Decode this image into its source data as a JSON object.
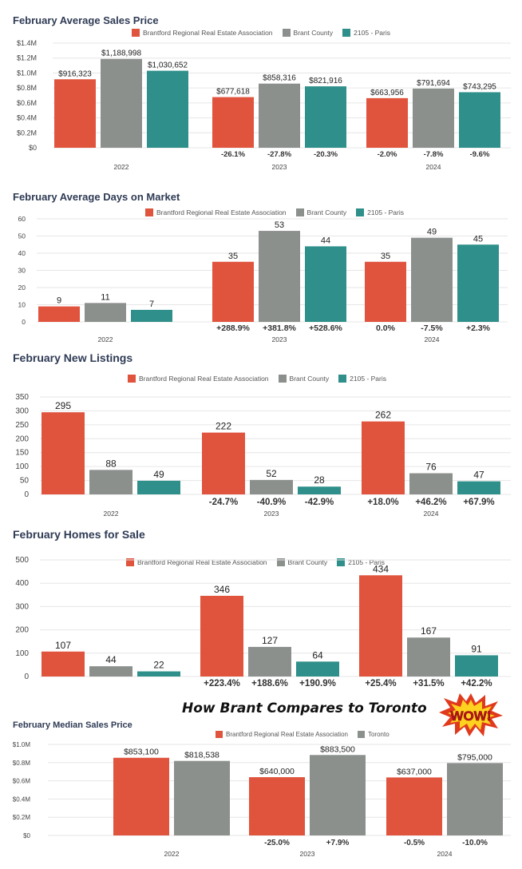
{
  "colors": {
    "brantford": "#e0533d",
    "brant": "#8c908d",
    "paris": "#2f8f8a",
    "toronto": "#8c908d",
    "title": "#2f3b55"
  },
  "headline": "How Brant Compares to Toronto",
  "badge_text": "WOW!",
  "chart_data": [
    {
      "type": "bar",
      "title": "February Average Sales Price",
      "categories": [
        "2022",
        "2023",
        "2024"
      ],
      "series": [
        {
          "name": "Brantford Regional Real Estate Association",
          "values": [
            916323,
            677618,
            663956
          ],
          "labels": [
            "$916,323",
            "$677,618",
            "$663,956"
          ]
        },
        {
          "name": "Brant County",
          "values": [
            1188998,
            858316,
            791694
          ],
          "labels": [
            "$1,188,998",
            "$858,316",
            "$791,694"
          ]
        },
        {
          "name": "2105 - Paris",
          "values": [
            1030652,
            821916,
            743295
          ],
          "labels": [
            "$1,030,652",
            "$821,916",
            "$743,295"
          ]
        }
      ],
      "changes": [
        [
          null,
          null,
          null
        ],
        [
          "-26.1%",
          "-27.8%",
          "-20.3%"
        ],
        [
          "-2.0%",
          "-7.8%",
          "-9.6%"
        ]
      ],
      "ylim": [
        0,
        1400000
      ],
      "yticks": [
        "$0",
        "$0.2M",
        "$0.4M",
        "$0.6M",
        "$0.8M",
        "$1.0M",
        "$1.2M",
        "$1.4M"
      ],
      "grid": true,
      "legend_position": "top"
    },
    {
      "type": "bar",
      "title": "February Average Days on Market",
      "categories": [
        "2022",
        "2023",
        "2024"
      ],
      "series": [
        {
          "name": "Brantford Regional Real Estate Association",
          "values": [
            9,
            35,
            35
          ],
          "labels": [
            "9",
            "35",
            "35"
          ]
        },
        {
          "name": "Brant County",
          "values": [
            11,
            53,
            49
          ],
          "labels": [
            "11",
            "53",
            "49"
          ]
        },
        {
          "name": "2105 - Paris",
          "values": [
            7,
            44,
            45
          ],
          "labels": [
            "7",
            "44",
            "45"
          ]
        }
      ],
      "changes": [
        [
          null,
          null,
          null
        ],
        [
          "+288.9%",
          "+381.8%",
          "+528.6%"
        ],
        [
          "0.0%",
          "-7.5%",
          "+2.3%"
        ]
      ],
      "ylim": [
        0,
        60
      ],
      "yticks": [
        "0",
        "10",
        "20",
        "30",
        "40",
        "50",
        "60"
      ],
      "grid": true,
      "legend_position": "top"
    },
    {
      "type": "bar",
      "title": "February New Listings",
      "categories": [
        "2022",
        "2023",
        "2024"
      ],
      "series": [
        {
          "name": "Brantford Regional Real Estate Association",
          "values": [
            295,
            222,
            262
          ],
          "labels": [
            "295",
            "222",
            "262"
          ]
        },
        {
          "name": "Brant County",
          "values": [
            88,
            52,
            76
          ],
          "labels": [
            "88",
            "52",
            "76"
          ]
        },
        {
          "name": "2105 - Paris",
          "values": [
            49,
            28,
            47
          ],
          "labels": [
            "49",
            "28",
            "47"
          ]
        }
      ],
      "changes": [
        [
          null,
          null,
          null
        ],
        [
          "-24.7%",
          "-40.9%",
          "-42.9%"
        ],
        [
          "+18.0%",
          "+46.2%",
          "+67.9%"
        ]
      ],
      "ylim": [
        0,
        350
      ],
      "yticks": [
        "0",
        "50",
        "100",
        "150",
        "200",
        "250",
        "300",
        "350"
      ],
      "grid": true,
      "legend_position": "top"
    },
    {
      "type": "bar",
      "title": "February Homes for Sale",
      "categories": [
        "",
        "",
        ""
      ],
      "series": [
        {
          "name": "Brantford Regional Real Estate Association",
          "values": [
            107,
            346,
            434
          ],
          "labels": [
            "107",
            "346",
            "434"
          ]
        },
        {
          "name": "Brant County",
          "values": [
            44,
            127,
            167
          ],
          "labels": [
            "44",
            "127",
            "167"
          ]
        },
        {
          "name": "2105 - Paris",
          "values": [
            22,
            64,
            91
          ],
          "labels": [
            "22",
            "64",
            "91"
          ]
        }
      ],
      "changes": [
        [
          null,
          null,
          null
        ],
        [
          "+223.4%",
          "+188.6%",
          "+190.9%"
        ],
        [
          "+25.4%",
          "+31.5%",
          "+42.2%"
        ]
      ],
      "ylim": [
        0,
        500
      ],
      "yticks": [
        "0",
        "100",
        "200",
        "300",
        "400",
        "500"
      ],
      "grid": true,
      "legend_position": "top"
    },
    {
      "type": "bar",
      "title": "February Median Sales Price",
      "categories": [
        "2022",
        "2023",
        "2024"
      ],
      "series": [
        {
          "name": "Brantford Regional Real Estate Association",
          "values": [
            853100,
            640000,
            637000
          ],
          "labels": [
            "$853,100",
            "$640,000",
            "$637,000"
          ]
        },
        {
          "name": "Toronto",
          "values": [
            818538,
            883500,
            795000
          ],
          "labels": [
            "$818,538",
            "$883,500",
            "$795,000"
          ]
        }
      ],
      "changes": [
        [
          null,
          null
        ],
        [
          "-25.0%",
          "+7.9%"
        ],
        [
          "-0.5%",
          "-10.0%"
        ]
      ],
      "ylim": [
        0,
        1000000
      ],
      "yticks": [
        "$0",
        "$0.2M",
        "$0.4M",
        "$0.6M",
        "$0.8M",
        "$1.0M"
      ],
      "grid": true,
      "legend_position": "top"
    }
  ]
}
